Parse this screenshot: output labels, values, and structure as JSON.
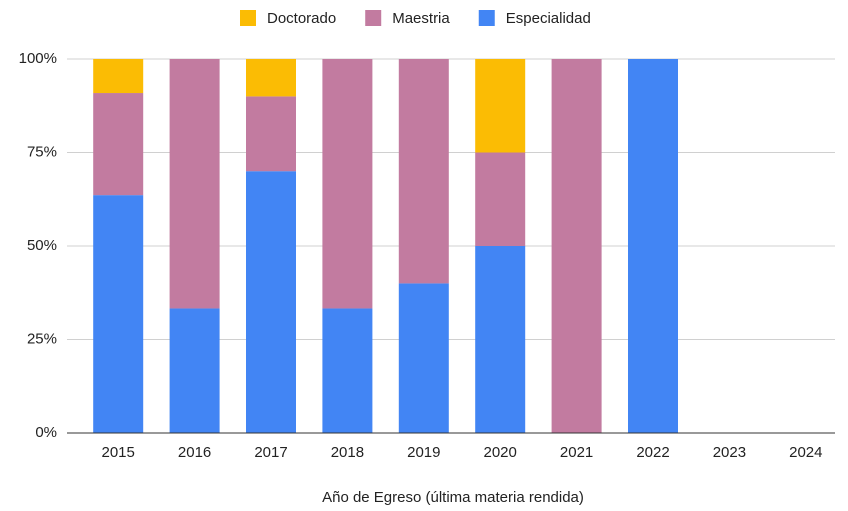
{
  "chart_data": {
    "type": "stacked_bar",
    "x_label": "Año de Egreso (última materia rendida)",
    "categories": [
      "2015",
      "2016",
      "2017",
      "2018",
      "2019",
      "2020",
      "2021",
      "2022",
      "2023",
      "2024"
    ],
    "series": [
      {
        "name": "Doctorado",
        "color": "#fbbc04",
        "values": [
          9.1,
          0,
          10,
          0,
          0,
          25,
          0,
          0,
          0,
          0
        ]
      },
      {
        "name": "Maestria",
        "color": "#c27ba0",
        "values": [
          27.3,
          66.7,
          20,
          66.7,
          60,
          25,
          100,
          0,
          0,
          0
        ]
      },
      {
        "name": "Especialidad",
        "color": "#4285f4",
        "values": [
          63.6,
          33.3,
          70,
          33.3,
          40,
          50,
          0,
          100,
          0,
          0
        ]
      }
    ],
    "ylim": [
      0,
      100
    ],
    "yticks": [
      {
        "value": 0,
        "label": "0%"
      },
      {
        "value": 25,
        "label": "25%"
      },
      {
        "value": 50,
        "label": "50%"
      },
      {
        "value": 75,
        "label": "75%"
      },
      {
        "value": 100,
        "label": "100%"
      }
    ],
    "grid": true,
    "legend": "top"
  }
}
